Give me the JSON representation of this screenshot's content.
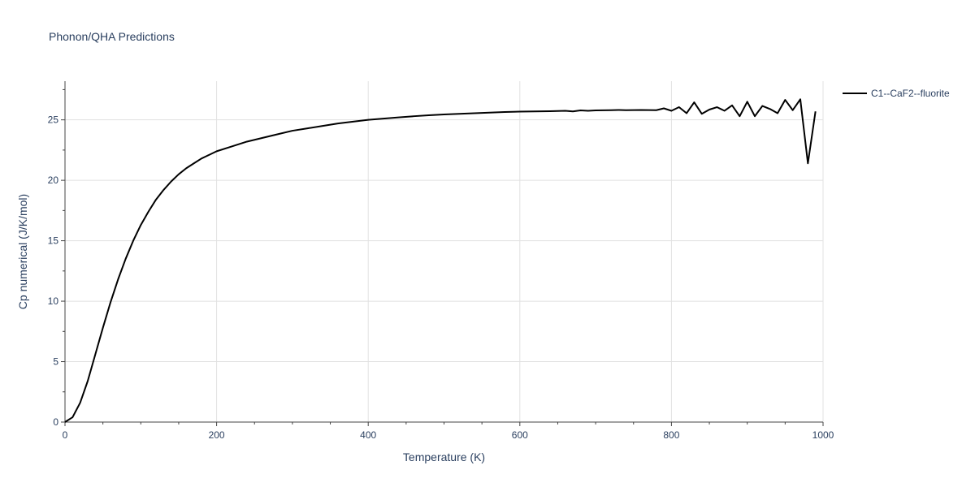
{
  "chart_data": {
    "type": "line",
    "title": "Phonon/QHA Predictions",
    "xlabel": "Temperature (K)",
    "ylabel": "Cp numerical (J/K/mol)",
    "xlim": [
      0,
      1000
    ],
    "ylim": [
      0,
      28.2
    ],
    "xticks": [
      0,
      200,
      400,
      600,
      800,
      1000
    ],
    "yticks": [
      0,
      5,
      10,
      15,
      20,
      25
    ],
    "x_minor_ticks": [
      50,
      100,
      150,
      250,
      300,
      350,
      450,
      500,
      550,
      650,
      700,
      750,
      850,
      900,
      950
    ],
    "y_minor_ticks": [
      2.5,
      7.5,
      12.5,
      17.5,
      22.5,
      27.5
    ],
    "grid": true,
    "legend_position": "top-right",
    "series": [
      {
        "name": "C1--CaF2--fluorite",
        "color": "#000000",
        "x": [
          0,
          10,
          20,
          30,
          40,
          50,
          60,
          70,
          80,
          90,
          100,
          110,
          120,
          130,
          140,
          150,
          160,
          170,
          180,
          190,
          200,
          220,
          240,
          260,
          280,
          300,
          320,
          340,
          360,
          380,
          400,
          420,
          440,
          460,
          480,
          500,
          520,
          540,
          560,
          580,
          600,
          620,
          640,
          660,
          670,
          680,
          690,
          700,
          720,
          730,
          740,
          760,
          780,
          790,
          800,
          810,
          820,
          830,
          840,
          850,
          860,
          870,
          880,
          890,
          900,
          910,
          920,
          930,
          940,
          950,
          960,
          970,
          980,
          990
        ],
        "y": [
          0,
          0.4,
          1.6,
          3.4,
          5.6,
          7.8,
          9.9,
          11.8,
          13.5,
          15.0,
          16.3,
          17.4,
          18.4,
          19.2,
          19.9,
          20.5,
          21.0,
          21.4,
          21.8,
          22.1,
          22.4,
          22.8,
          23.2,
          23.5,
          23.8,
          24.1,
          24.3,
          24.5,
          24.7,
          24.85,
          25.0,
          25.1,
          25.2,
          25.3,
          25.38,
          25.45,
          25.5,
          25.55,
          25.6,
          25.65,
          25.68,
          25.7,
          25.72,
          25.75,
          25.7,
          25.78,
          25.75,
          25.78,
          25.8,
          25.82,
          25.8,
          25.82,
          25.8,
          25.95,
          25.75,
          26.05,
          25.55,
          26.45,
          25.5,
          25.85,
          26.05,
          25.75,
          26.2,
          25.3,
          26.5,
          25.3,
          26.15,
          25.9,
          25.55,
          26.65,
          25.8,
          26.7,
          21.4,
          25.7
        ]
      }
    ]
  }
}
